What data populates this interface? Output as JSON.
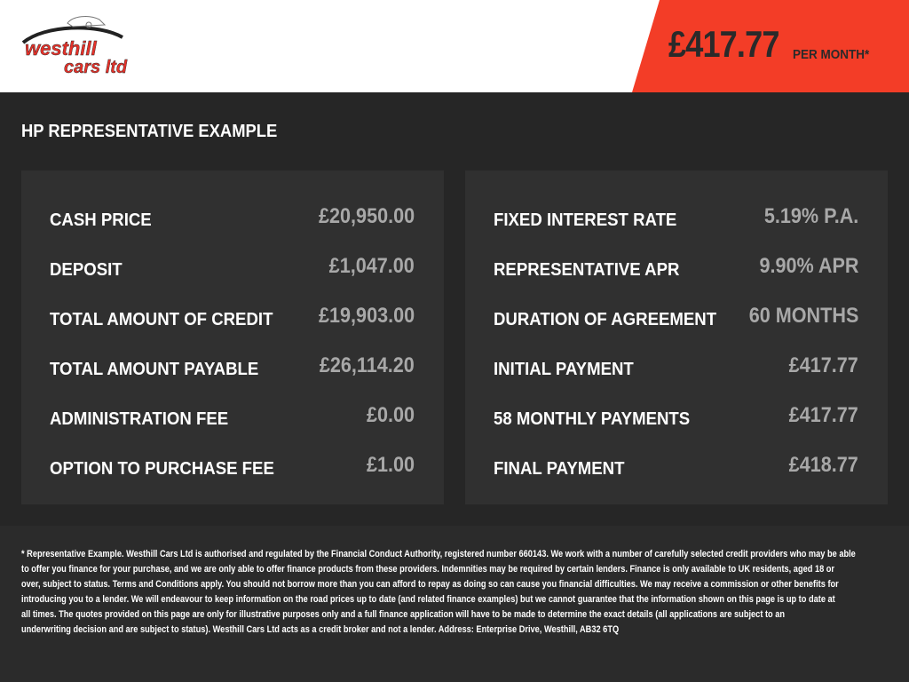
{
  "header": {
    "logo_text": [
      "westhill",
      "cars ltd"
    ],
    "monthly_price": "£417.77",
    "per_month_label": "PER MONTH*",
    "accent_color": "#f33d27"
  },
  "section_title": "HP REPRESENTATIVE EXAMPLE",
  "left_panel": [
    {
      "label": "CASH PRICE",
      "value": "£20,950.00"
    },
    {
      "label": "DEPOSIT",
      "value": "£1,047.00"
    },
    {
      "label": "TOTAL AMOUNT OF CREDIT",
      "value": "£19,903.00"
    },
    {
      "label": "TOTAL AMOUNT PAYABLE",
      "value": "£26,114.20"
    },
    {
      "label": "ADMINISTRATION FEE",
      "value": "£0.00"
    },
    {
      "label": "OPTION TO PURCHASE FEE",
      "value": "£1.00"
    }
  ],
  "right_panel": [
    {
      "label": "FIXED INTEREST RATE",
      "value": "5.19% P.A."
    },
    {
      "label": "REPRESENTATIVE APR",
      "value": "9.90% APR"
    },
    {
      "label": "DURATION OF AGREEMENT",
      "value": "60 MONTHS"
    },
    {
      "label": "INITIAL PAYMENT",
      "value": "£417.77"
    },
    {
      "label": "58 MONTHLY PAYMENTS",
      "value": "£417.77"
    },
    {
      "label": "FINAL PAYMENT",
      "value": "£418.77"
    }
  ],
  "disclaimer_lines": [
    "* Representative Example. Westhill Cars Ltd is authorised and regulated by the Financial Conduct Authority, registered number 660143. We work with a number of carefully selected credit providers who may be able",
    "to offer you finance for your purchase, and we are only able to offer finance products from these providers. Indemnities may be required by certain lenders. Finance is only available to UK residents, aged 18 or",
    "over, subject to status. Terms and Conditions apply. You should not borrow more than you can afford to repay as doing so can cause you financial difficulties. We may receive a commission or other benefits for",
    "introducing you to a lender. We will endeavour to keep information on the road prices up to date (and related finance examples) but we cannot guarantee that the information shown on this page is up to date at",
    "all times. The quotes provided on this page are only for illustrative purposes only and a full finance application will have to be made to determine the exact details (all applications are subject to an",
    "underwriting decision and are subject to status). Westhill Cars Ltd acts as a credit broker and not a lender. Address: Enterprise Drive, Westhill, AB32 6TQ"
  ]
}
